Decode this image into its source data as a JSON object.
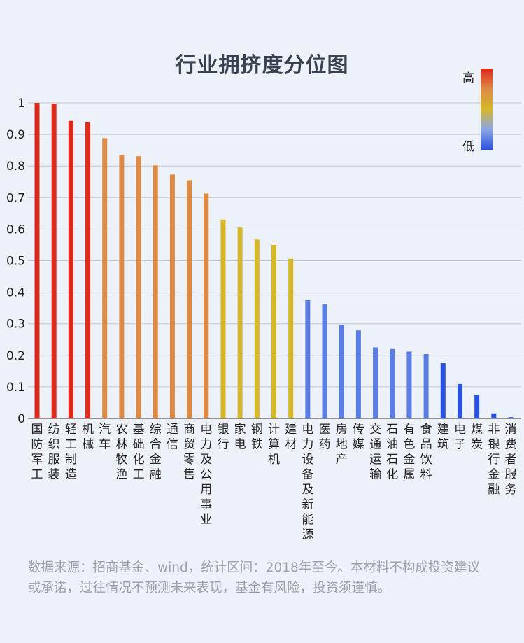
{
  "title": "行业拥挤度分位图",
  "note": "数据来源：招商基金、wind，统计区间：2018年至今。本材料不构成投资建议或承诺，过往情况不预测未来表现，基金有风险，投资须谨慎。",
  "legend": {
    "high": "高",
    "low": "低"
  },
  "colors": {
    "red": "#e02a1d",
    "orange": "#dd8a45",
    "yellow": "#d6b72a",
    "blue_light": "#5a7ee4",
    "blue_dark": "#2a52de"
  },
  "chart_data": {
    "type": "bar",
    "title": "行业拥挤度分位图",
    "ylim": [
      0,
      1
    ],
    "yticks": [
      "0",
      "0.1",
      "0.2",
      "0.3",
      "0.4",
      "0.5",
      "0.6",
      "0.7",
      "0.8",
      "0.9",
      "1"
    ],
    "grid": true,
    "legend_position": "top-right",
    "categories": [
      "国防军工",
      "纺织服装",
      "轻工制造",
      "机械",
      "汽车",
      "农林牧渔",
      "基础化工",
      "综合金融",
      "通信",
      "商贸零售",
      "电力及公用事业",
      "银行",
      "家电",
      "钢铁",
      "计算机",
      "建材",
      "电力设备及新能源",
      "医药",
      "房地产",
      "传媒",
      "交通运输",
      "石油石化",
      "有色金属",
      "食品饮料",
      "建筑",
      "电子",
      "煤炭",
      "非银行金融",
      "消费者服务"
    ],
    "values": [
      1.0,
      0.997,
      0.943,
      0.938,
      0.888,
      0.835,
      0.831,
      0.802,
      0.773,
      0.755,
      0.713,
      0.63,
      0.605,
      0.567,
      0.55,
      0.506,
      0.375,
      0.362,
      0.296,
      0.279,
      0.225,
      0.22,
      0.212,
      0.204,
      0.175,
      0.109,
      0.075,
      0.016,
      0.004
    ],
    "bar_colors": [
      "#e02a1d",
      "#e02a1d",
      "#e02a1d",
      "#e02a1d",
      "#dd8a45",
      "#dd8a45",
      "#dd8a45",
      "#dd8a45",
      "#dd8a45",
      "#dd8a45",
      "#dd8a45",
      "#d6b72a",
      "#d6b72a",
      "#d6b72a",
      "#d6b72a",
      "#d6b72a",
      "#5a7ee4",
      "#5a7ee4",
      "#5a7ee4",
      "#5a7ee4",
      "#5a7ee4",
      "#5a7ee4",
      "#5a7ee4",
      "#5a7ee4",
      "#2a52de",
      "#2a52de",
      "#2a52de",
      "#2a52de",
      "#2a52de"
    ]
  }
}
